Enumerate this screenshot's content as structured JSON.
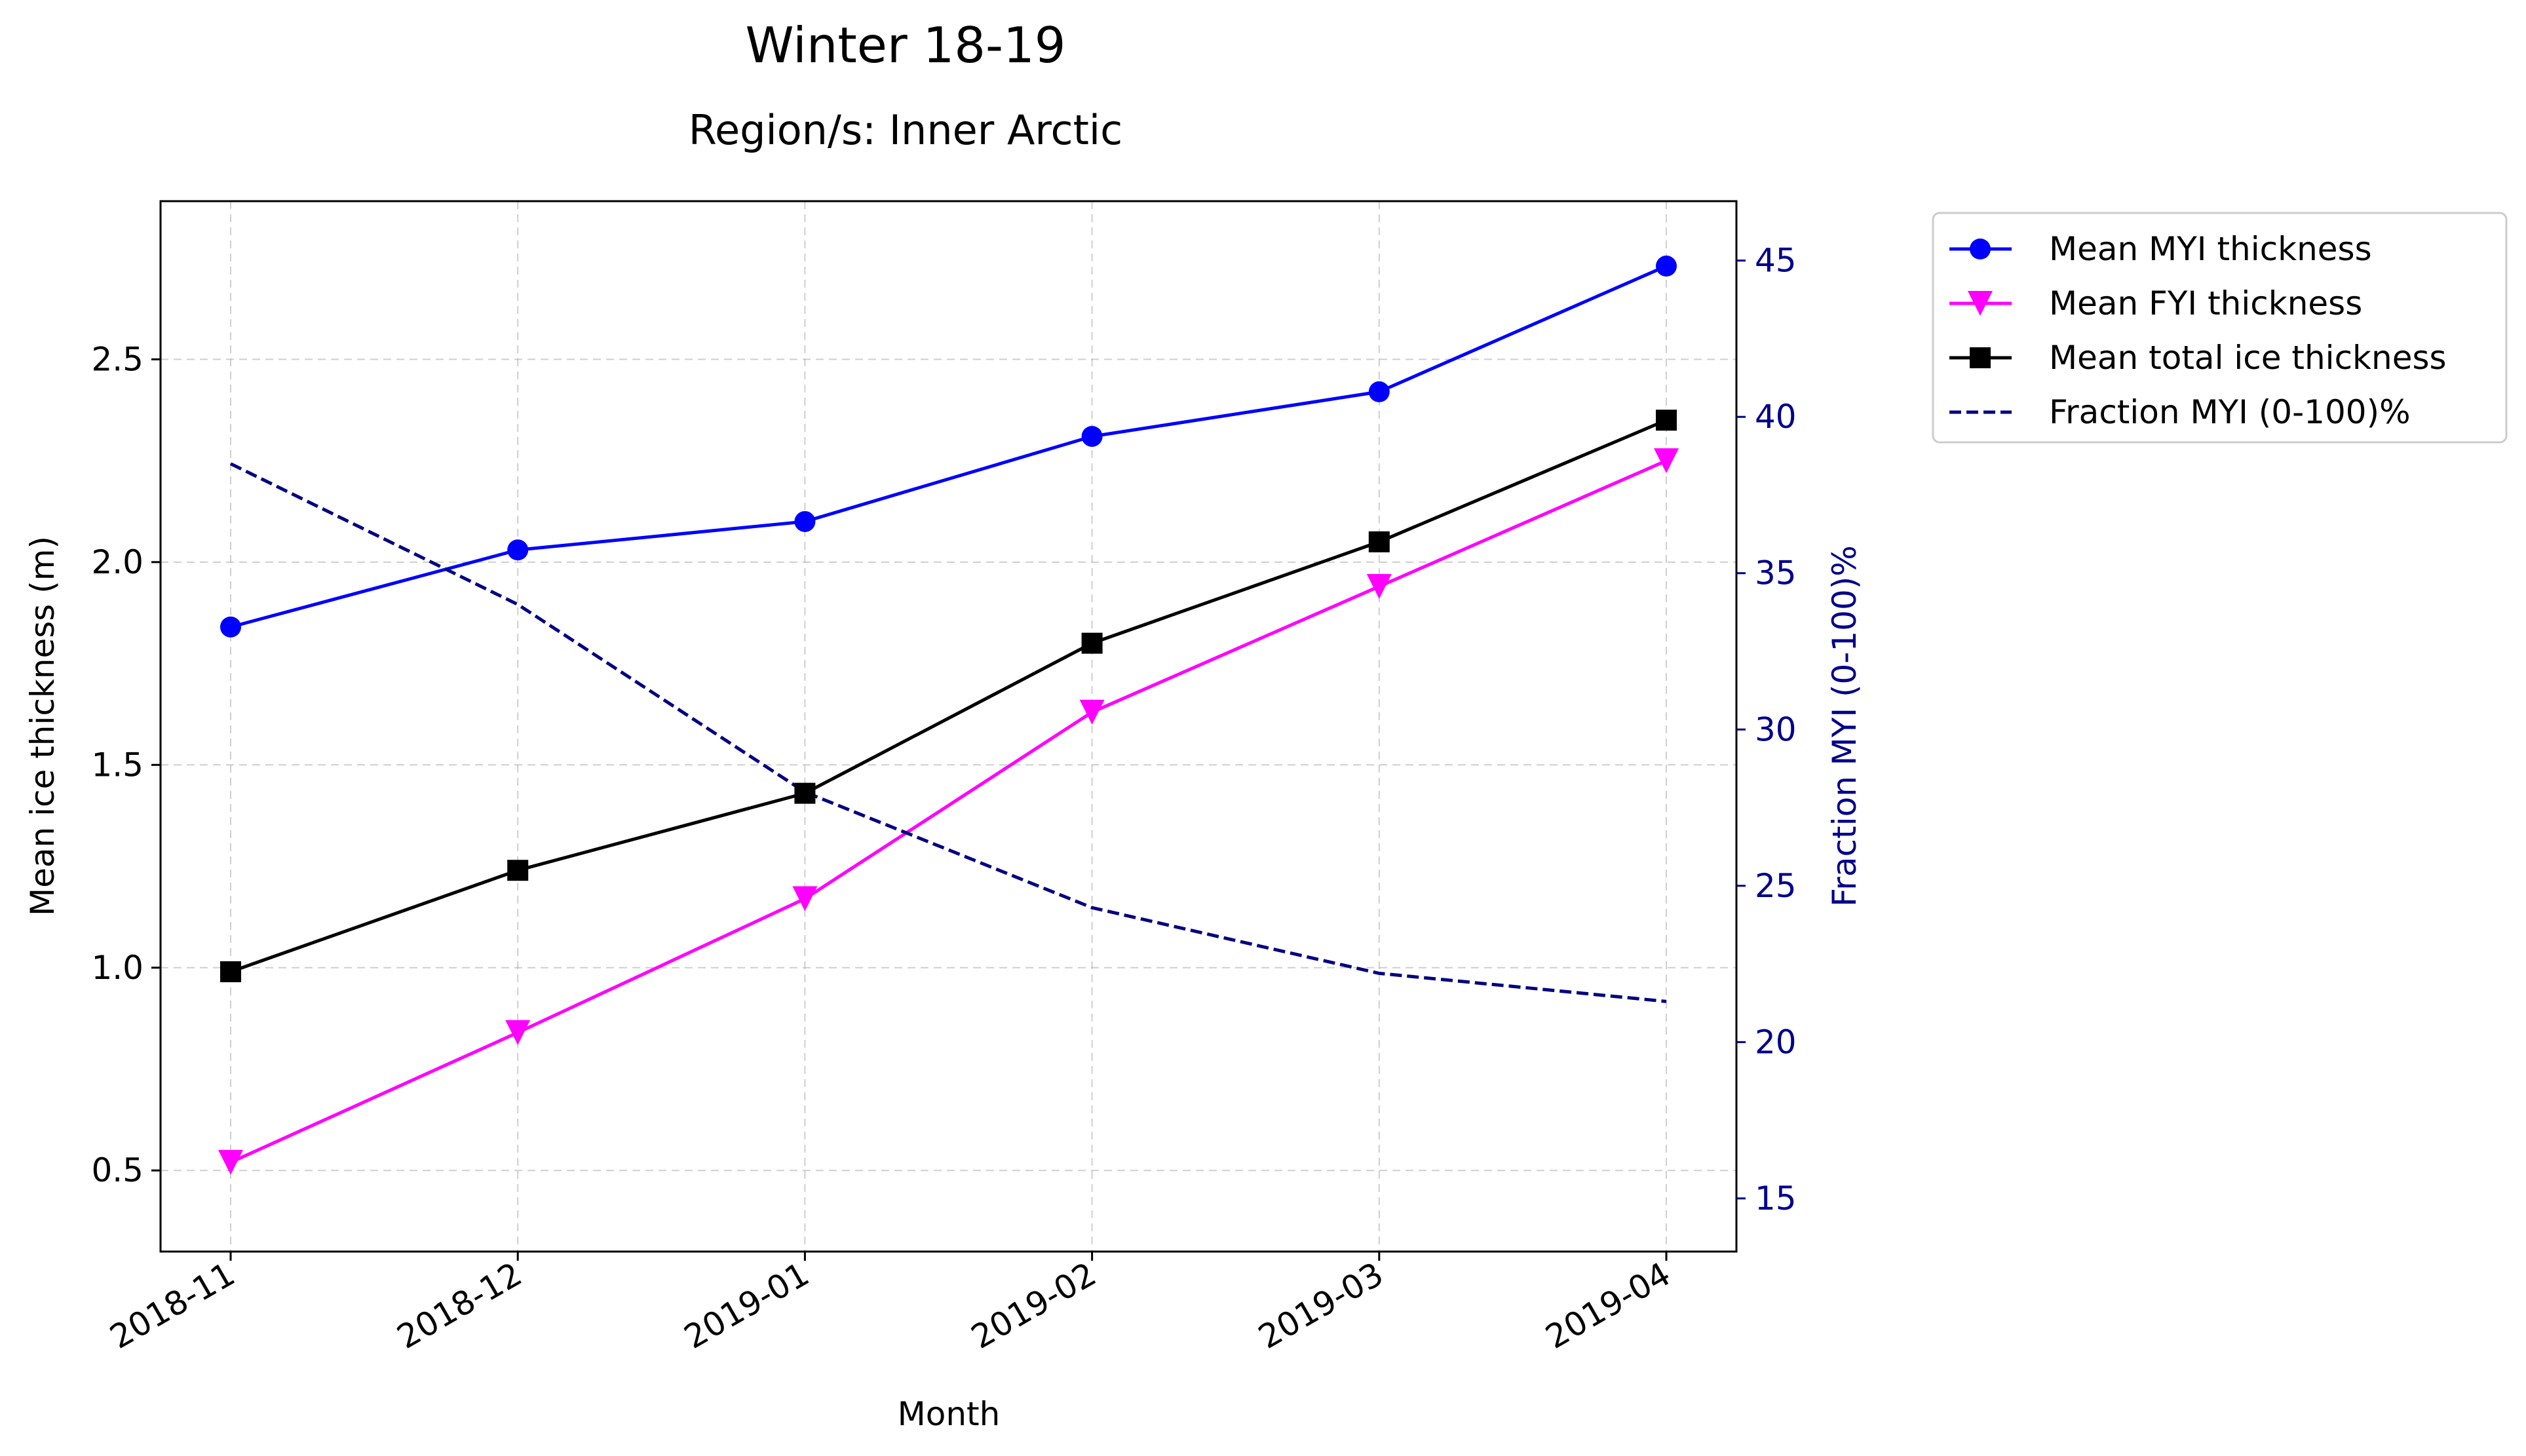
{
  "chart_data": {
    "type": "line",
    "title": "Winter 18-19",
    "subtitle": "Region/s: Inner Arctic",
    "xlabel": "Month",
    "ylabel": "Mean ice thickness (m)",
    "y2label": "Fraction MYI (0-100)%",
    "categories": [
      "2018-11",
      "2018-12",
      "2019-01",
      "2019-02",
      "2019-03",
      "2019-04"
    ],
    "ylim": [
      0.3,
      2.89
    ],
    "yticks": [
      "0.5",
      "1.0",
      "1.5",
      "2.0",
      "2.5"
    ],
    "y2lim": [
      13.3,
      46.9
    ],
    "y2ticks": [
      "15",
      "20",
      "25",
      "30",
      "35",
      "40",
      "45"
    ],
    "grid": true,
    "legend_position": "outside-right",
    "series": [
      {
        "name": "Mean MYI thickness",
        "axis": "left",
        "color": "#0000ff",
        "marker": "circle",
        "style": "solid",
        "values": [
          1.84,
          2.03,
          2.1,
          2.31,
          2.42,
          2.73
        ]
      },
      {
        "name": "Mean FYI thickness",
        "axis": "left",
        "color": "#ff00ff",
        "marker": "triangle-down",
        "style": "solid",
        "values": [
          0.52,
          0.84,
          1.17,
          1.63,
          1.94,
          2.25
        ]
      },
      {
        "name": "Mean total ice thickness",
        "axis": "left",
        "color": "#000000",
        "marker": "square",
        "style": "solid",
        "values": [
          0.99,
          1.24,
          1.43,
          1.8,
          2.05,
          2.35
        ]
      },
      {
        "name": "Fraction MYI (0-100)%",
        "axis": "right",
        "color": "#000080",
        "marker": "none",
        "style": "dashed",
        "values": [
          38.5,
          34.0,
          28.0,
          24.3,
          22.2,
          21.3
        ]
      }
    ]
  }
}
